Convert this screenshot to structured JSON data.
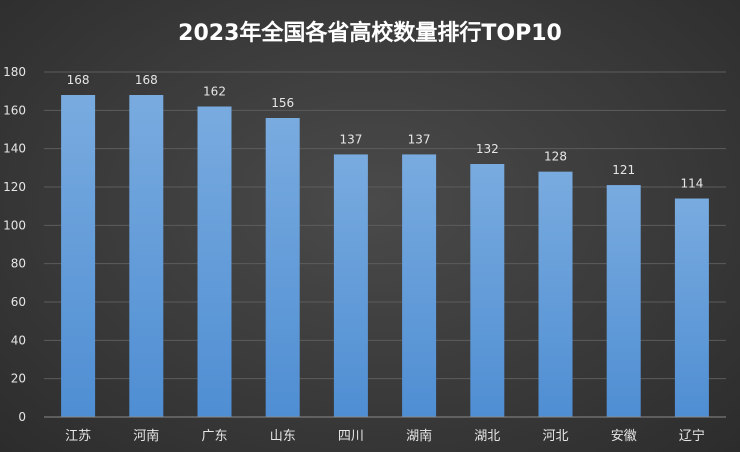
{
  "chart_data": {
    "type": "bar",
    "title": "2023年全国各省高校数量排行TOP10",
    "categories": [
      "江苏",
      "河南",
      "广东",
      "山东",
      "四川",
      "湖南",
      "湖北",
      "河北",
      "安徽",
      "辽宁"
    ],
    "values": [
      168,
      168,
      162,
      156,
      137,
      137,
      132,
      128,
      121,
      114
    ],
    "ylim": [
      0,
      180
    ],
    "yticks": [
      0,
      20,
      40,
      60,
      80,
      100,
      120,
      140,
      160,
      180
    ],
    "grid": true,
    "legend": "none",
    "colors": {
      "bar_top": "#79abdf",
      "bar_bottom": "#4f8ed3",
      "background": "#3a3a3a"
    }
  }
}
